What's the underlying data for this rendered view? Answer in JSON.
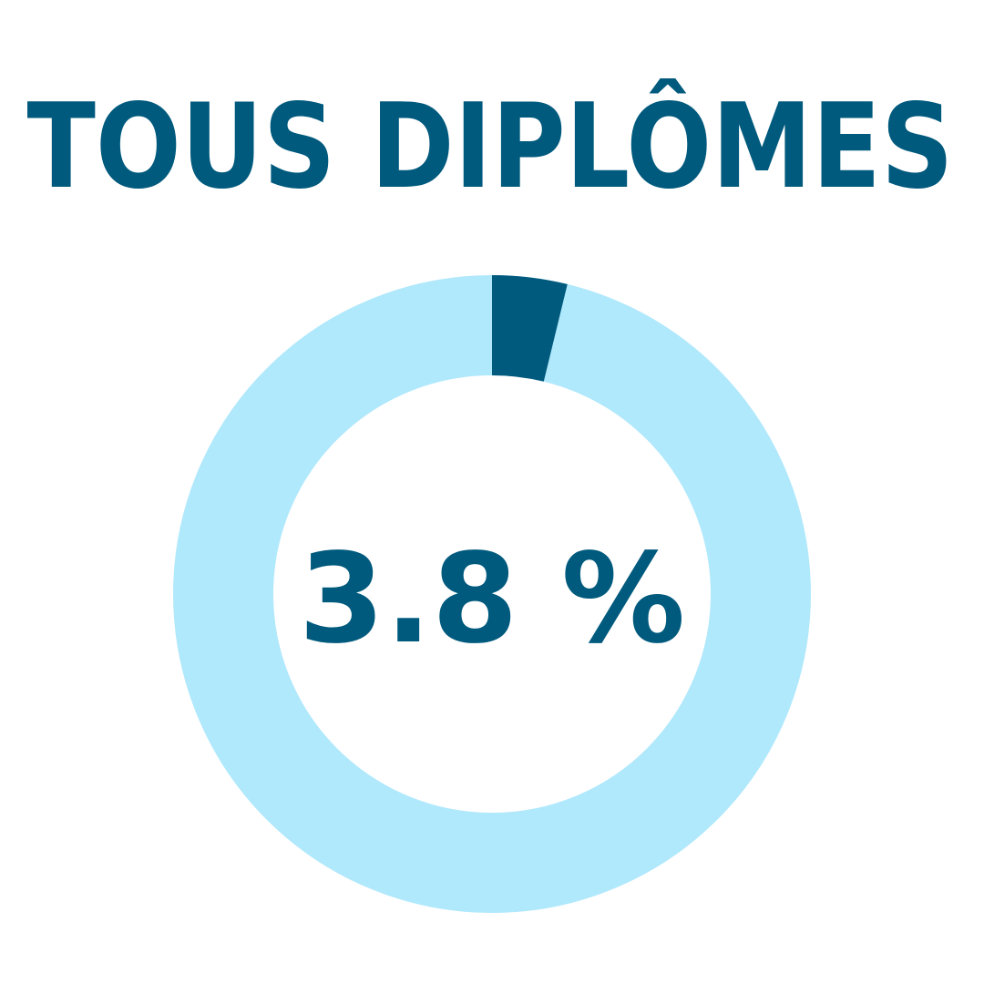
{
  "chart_data": {
    "type": "donut",
    "title": "TOUS DIPLÔMES",
    "values": [
      3.8
    ],
    "value_labels": [
      "3.8 %"
    ],
    "color": "#005a7d",
    "track_color": "#b0e8fc"
  }
}
